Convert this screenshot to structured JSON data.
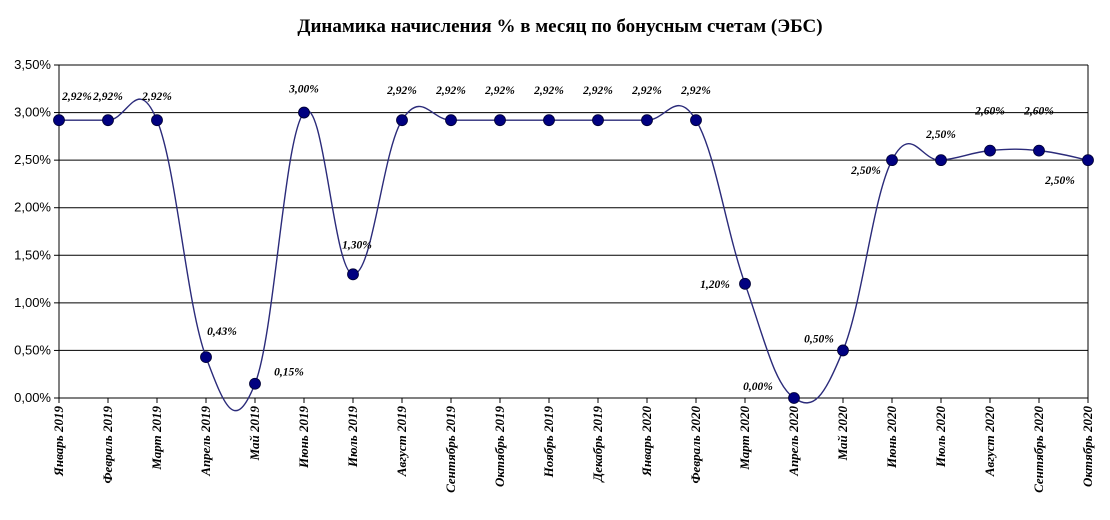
{
  "chart_data": {
    "type": "line",
    "title": "Динамика начисления % в месяц по бонусным счетам (ЭБС)",
    "xlabel": "",
    "ylabel": "",
    "ylim": [
      0,
      3.5
    ],
    "yticks": [
      "0,00%",
      "0,50%",
      "1,00%",
      "1,50%",
      "2,00%",
      "2,50%",
      "3,00%",
      "3,50%"
    ],
    "grid": true,
    "smooth": true,
    "categories": [
      "Январь 2019",
      "Февраль 2019",
      "Март 2019",
      "Апрель 2019",
      "Май 2019",
      "Июнь 2019",
      "Июль 2019",
      "Август 2019",
      "Сентябрь 2019",
      "Октябрь 2019",
      "Ноябрь 2019",
      "Декабрь 2019",
      "Январь 2020",
      "Февраль 2020",
      "Март 2020",
      "Апрель 2020",
      "Май 2020",
      "Июнь 2020",
      "Июль 2020",
      "Август 2020",
      "Сентябрь 2020",
      "Октябрь 2020"
    ],
    "series": [
      {
        "values": [
          2.92,
          2.92,
          2.92,
          0.43,
          0.15,
          3.0,
          1.3,
          2.92,
          2.92,
          2.92,
          2.92,
          2.92,
          2.92,
          2.92,
          1.2,
          0.0,
          0.5,
          2.5,
          2.5,
          2.6,
          2.6,
          2.5
        ],
        "labels": [
          "2,92%",
          "2,92%",
          "2,92%",
          "0,43%",
          "0,15%",
          "3,00%",
          "1,30%",
          "2,92%",
          "2,92%",
          "2,92%",
          "2,92%",
          "2,92%",
          "2,92%",
          "2,92%",
          "1,20%",
          "0,00%",
          "0,50%",
          "2,50%",
          "2,50%",
          "2,60%",
          "2,60%",
          "2,50%"
        ]
      }
    ],
    "colors": {
      "line": "#2b2b7a",
      "marker": "#000080",
      "grid": "#000000"
    }
  }
}
